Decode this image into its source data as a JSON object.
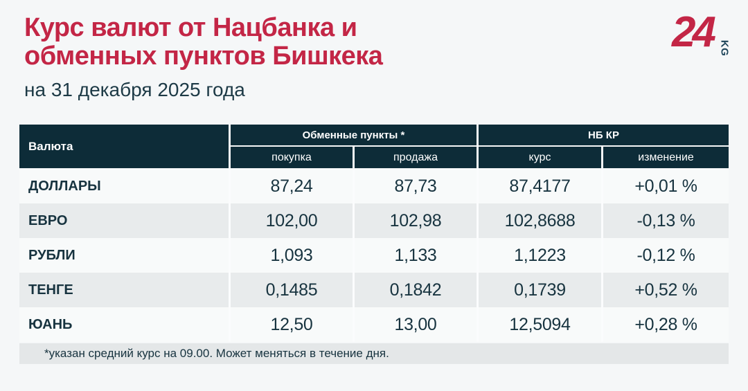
{
  "header": {
    "title_line1": "Курс валют от Нацбанка и",
    "title_line2": "обменных пунктов Бишкека",
    "subtitle": "на 31 декабря 2025 года",
    "logo_number": "24",
    "logo_suffix": "KG"
  },
  "colors": {
    "accent_red": "#C32646",
    "table_header_bg": "#0D2C38",
    "text_dark": "#17333F",
    "row_odd": "#F8FAFA",
    "row_even": "#E8EBEC",
    "page_bg": "#F5F7F8",
    "footnote_bg": "#E4E7E8"
  },
  "table": {
    "header": {
      "currency": "Валюта",
      "group_exchange": "Обменные пункты *",
      "group_nbkr": "НБ КР",
      "buy": "покупка",
      "sell": "продажа",
      "rate": "курс",
      "change": "изменение"
    },
    "rows": [
      {
        "currency": "ДОЛЛАРЫ",
        "buy": "87,24",
        "sell": "87,73",
        "rate": "87,4177",
        "change": "+0,01 %"
      },
      {
        "currency": "ЕВРО",
        "buy": "102,00",
        "sell": "102,98",
        "rate": "102,8688",
        "change": "-0,13 %"
      },
      {
        "currency": "РУБЛИ",
        "buy": "1,093",
        "sell": "1,133",
        "rate": "1,1223",
        "change": "-0,12 %"
      },
      {
        "currency": "ТЕНГЕ",
        "buy": "0,1485",
        "sell": "0,1842",
        "rate": "0,1739",
        "change": "+0,52 %"
      },
      {
        "currency": "ЮАНЬ",
        "buy": "12,50",
        "sell": "13,00",
        "rate": "12,5094",
        "change": "+0,28 %"
      }
    ],
    "footnote": "*указан средний курс на 09.00. Может меняться в течение дня."
  },
  "chart_data": {
    "type": "table",
    "title": "Курс валют от Нацбанка и обменных пунктов Бишкека",
    "subtitle": "на 31 декабря 2025 года",
    "column_groups": [
      "Валюта",
      "Обменные пункты *",
      "НБ КР"
    ],
    "columns": [
      "Валюта",
      "покупка",
      "продажа",
      "курс",
      "изменение"
    ],
    "rows": [
      [
        "ДОЛЛАРЫ",
        "87,24",
        "87,73",
        "87,4177",
        "+0,01 %"
      ],
      [
        "ЕВРО",
        "102,00",
        "102,98",
        "102,8688",
        "-0,13 %"
      ],
      [
        "РУБЛИ",
        "1,093",
        "1,133",
        "1,1223",
        "-0,12 %"
      ],
      [
        "ТЕНГЕ",
        "0,1485",
        "0,1842",
        "0,1739",
        "+0,52 %"
      ],
      [
        "ЮАНЬ",
        "12,50",
        "13,00",
        "12,5094",
        "+0,28 %"
      ]
    ],
    "footnote": "*указан средний курс на 09.00. Может меняться в течение дня."
  }
}
